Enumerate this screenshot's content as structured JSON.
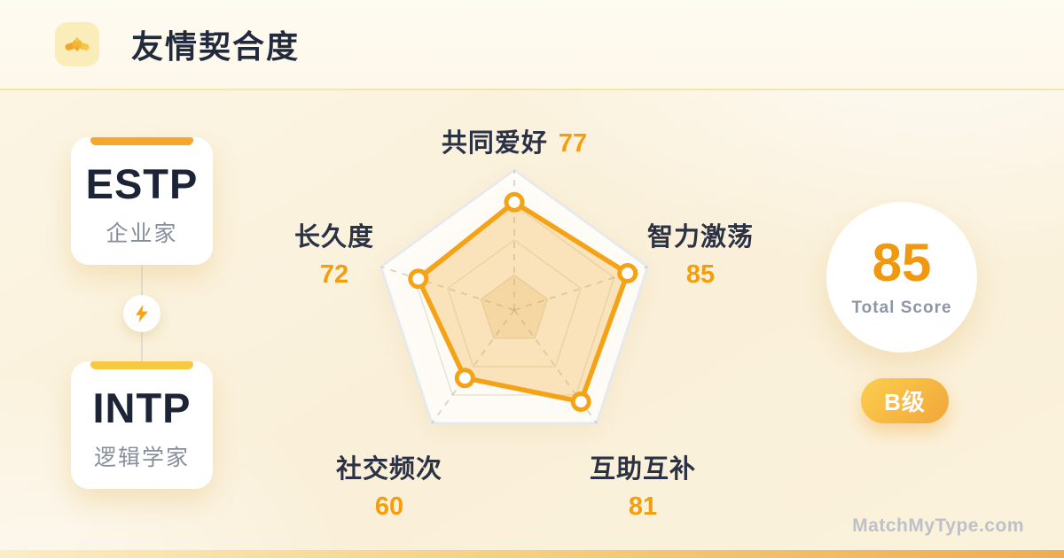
{
  "header": {
    "title": "友情契合度",
    "icon": "handshake-icon"
  },
  "pair_panel": {
    "type_a": {
      "code": "ESTP",
      "name": "企业家",
      "accent_color": "#F5A62B"
    },
    "type_b": {
      "code": "INTP",
      "name": "逻辑学家",
      "accent_color": "#F7C842"
    },
    "connector_icon": "lightning-icon"
  },
  "chart_data": {
    "type": "radar",
    "axes": [
      {
        "label": "共同爱好",
        "value": 77
      },
      {
        "label": "智力激荡",
        "value": 85
      },
      {
        "label": "互助互补",
        "value": 81
      },
      {
        "label": "社交频次",
        "value": 60
      },
      {
        "label": "长久度",
        "value": 72
      }
    ],
    "max": 100,
    "levels": [
      25,
      50,
      75,
      100
    ],
    "grid": "pentagon, dashed spokes from center",
    "legend": "none",
    "stroke_color": "#F5A316",
    "fill_color": "rgba(245,166,35,0.28)",
    "value_color": "#F59E0B",
    "label_color": "#2B3245"
  },
  "score_panel": {
    "score": "85",
    "score_label": "Total Score",
    "grade": "B级"
  },
  "footer": {
    "watermark": "MatchMyType.com"
  }
}
